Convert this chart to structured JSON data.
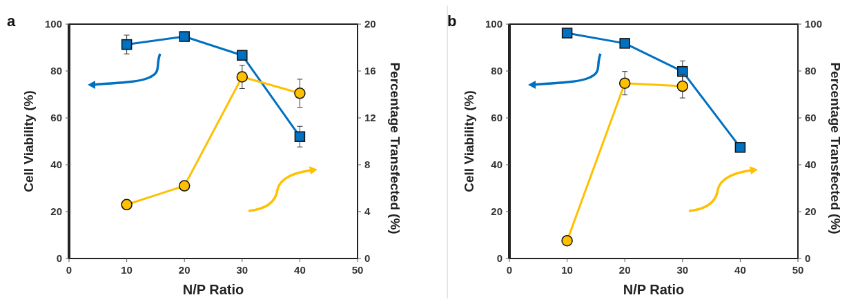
{
  "chart_data": [
    {
      "type": "line",
      "annotations": [
        "a"
      ],
      "xlabel": "N/P Ratio",
      "ylabel": "Cell Viability (%)",
      "y2label": "Percentage Transfected (%)",
      "xlim": [
        0,
        50
      ],
      "xticks": [
        0,
        10,
        20,
        30,
        40,
        50
      ],
      "ylim": [
        0,
        100
      ],
      "yticks": [
        0,
        20,
        40,
        60,
        80,
        100
      ],
      "y2lim": [
        0,
        20
      ],
      "y2ticks": [
        0,
        4,
        8,
        12,
        16,
        20
      ],
      "grid": false,
      "line_style": "solid",
      "x": [
        10,
        20,
        30,
        40
      ],
      "series": [
        {
          "color": "#0070c0",
          "marker": "square",
          "values": [
            91.3,
            94.7,
            86.7,
            52
          ],
          "errors": [
            4,
            null,
            2,
            4.4
          ]
        },
        {
          "color": "#ffc000",
          "marker": "circle",
          "axis": "y2",
          "values": [
            4.6,
            6.2,
            15.5,
            14.1
          ],
          "errors": [
            null,
            null,
            1,
            1.2
          ]
        }
      ]
    },
    {
      "type": "line",
      "annotations": [
        "b"
      ],
      "xlabel": "N/P Ratio",
      "ylabel": "Cell Viability (%)",
      "y2label": "Percentage Transfected (%)",
      "xlim": [
        0,
        50
      ],
      "xticks": [
        0,
        10,
        20,
        30,
        40,
        50
      ],
      "ylim": [
        0,
        100
      ],
      "yticks": [
        0,
        20,
        40,
        60,
        80,
        100
      ],
      "y2lim": [
        0,
        100
      ],
      "y2ticks": [
        0,
        20,
        40,
        60,
        80,
        100
      ],
      "grid": false,
      "line_style": "solid",
      "x": [
        10,
        20,
        30,
        40
      ],
      "series": [
        {
          "color": "#0070c0",
          "marker": "square",
          "values": [
            96.2,
            91.8,
            79.8,
            47.4
          ],
          "errors": [
            null,
            null,
            4.5,
            null
          ]
        },
        {
          "color": "#ffc000",
          "marker": "circle",
          "axis": "y2",
          "values": [
            7.6,
            74.8,
            73.5,
            null
          ],
          "errors": [
            null,
            5,
            5,
            null
          ]
        }
      ]
    }
  ]
}
